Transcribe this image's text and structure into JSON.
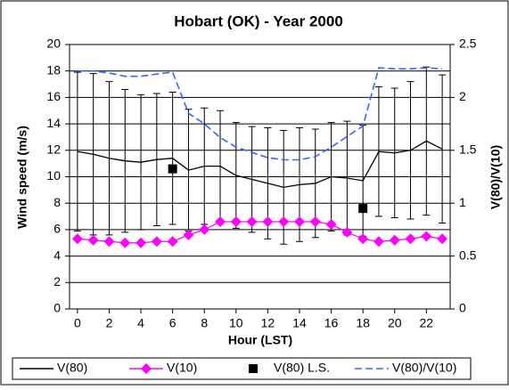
{
  "chart_data": {
    "type": "line",
    "title": "Hobart (OK) - Year 2000",
    "x_label": "Hour (LST)",
    "y_label": "Wind speed (m/s)",
    "y2_label": "V(80)/V(10)",
    "x": [
      0,
      1,
      2,
      3,
      4,
      5,
      6,
      7,
      8,
      9,
      10,
      11,
      12,
      13,
      14,
      15,
      16,
      17,
      18,
      19,
      20,
      21,
      22,
      23
    ],
    "xlim": [
      -0.5,
      23.5
    ],
    "xticks": [
      0,
      2,
      4,
      6,
      8,
      10,
      12,
      14,
      16,
      18,
      20,
      22
    ],
    "ylim": [
      0,
      20
    ],
    "yticks": [
      0,
      2,
      4,
      6,
      8,
      10,
      12,
      14,
      16,
      18,
      20
    ],
    "y2lim": [
      0,
      2.5
    ],
    "y2ticks": [
      0,
      0.5,
      1,
      1.5,
      2,
      2.5
    ],
    "grid": true,
    "legend": "bottom",
    "series": [
      {
        "name": "V(80)",
        "color": "#000000",
        "marker": "none",
        "line": "solid",
        "values": [
          11.9,
          11.7,
          11.4,
          11.2,
          11.1,
          11.3,
          11.4,
          10.5,
          10.8,
          10.8,
          10.1,
          9.8,
          9.5,
          9.2,
          9.4,
          9.5,
          10.0,
          9.9,
          9.7,
          11.9,
          11.8,
          12.0,
          12.7,
          12.1
        ],
        "errors": [
          6.0,
          6.1,
          5.8,
          5.4,
          5.1,
          5.0,
          5.0,
          4.6,
          4.4,
          4.2,
          4.0,
          4.0,
          4.2,
          4.3,
          4.3,
          4.1,
          4.1,
          4.3,
          4.2,
          4.9,
          4.9,
          5.2,
          5.6,
          5.6
        ]
      },
      {
        "name": "V(10)",
        "color": "#ff00ff",
        "marker": "diamond",
        "line": "solid",
        "values": [
          5.3,
          5.2,
          5.1,
          5.0,
          5.0,
          5.1,
          5.1,
          5.6,
          6.0,
          6.6,
          6.6,
          6.6,
          6.6,
          6.6,
          6.6,
          6.6,
          6.4,
          5.8,
          5.3,
          5.1,
          5.2,
          5.3,
          5.5,
          5.3
        ]
      },
      {
        "name": "V(80) L.S.",
        "color": "#000000",
        "marker": "square",
        "line": "none",
        "values": [
          null,
          null,
          null,
          null,
          null,
          null,
          10.6,
          null,
          null,
          null,
          null,
          null,
          null,
          null,
          null,
          null,
          null,
          null,
          7.6,
          null,
          null,
          null,
          null,
          null
        ]
      },
      {
        "name": "V(80)/V(10)",
        "color": "#3366ff",
        "marker": "none",
        "line": "dashed",
        "axis": "y2",
        "values": [
          2.25,
          2.25,
          2.23,
          2.2,
          2.2,
          2.22,
          2.24,
          1.85,
          1.75,
          1.62,
          1.53,
          1.48,
          1.43,
          1.41,
          1.41,
          1.44,
          1.53,
          1.63,
          1.73,
          2.28,
          2.27,
          2.27,
          2.28,
          2.27
        ]
      }
    ]
  }
}
